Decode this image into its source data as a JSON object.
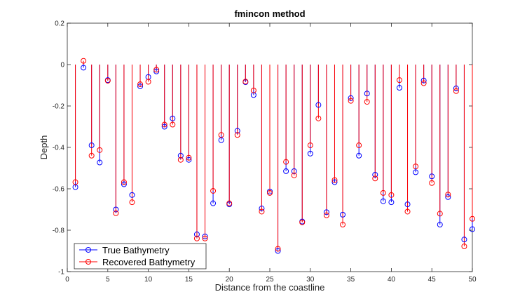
{
  "chart_data": {
    "type": "stem",
    "title": "fmincon method",
    "xlabel": "Distance from the coastline",
    "ylabel": "Depth",
    "xlim": [
      0,
      50
    ],
    "ylim": [
      -1,
      0.2
    ],
    "xticks": [
      0,
      5,
      10,
      15,
      20,
      25,
      30,
      35,
      40,
      45,
      50
    ],
    "yticks": [
      -1,
      -0.8,
      -0.6,
      -0.4,
      -0.2,
      0,
      0.2
    ],
    "ytick_labels": [
      "-1",
      "-0.8",
      "-0.6",
      "-0.4",
      "-0.2",
      "0",
      "0.2"
    ],
    "grid": false,
    "legend_position": "bottom-left",
    "x": [
      1,
      2,
      3,
      4,
      5,
      6,
      7,
      8,
      9,
      10,
      11,
      12,
      13,
      14,
      15,
      16,
      17,
      18,
      19,
      20,
      21,
      22,
      23,
      24,
      25,
      26,
      27,
      28,
      29,
      30,
      31,
      32,
      33,
      34,
      35,
      36,
      37,
      38,
      39,
      40,
      41,
      42,
      43,
      44,
      45,
      46,
      47,
      48,
      49,
      50
    ],
    "series": [
      {
        "name": "True Bathymetry",
        "color": "#0000ff",
        "values": [
          -0.592,
          -0.015,
          -0.39,
          -0.473,
          -0.075,
          -0.7,
          -0.578,
          -0.63,
          -0.105,
          -0.06,
          -0.033,
          -0.3,
          -0.26,
          -0.44,
          -0.46,
          -0.82,
          -0.83,
          -0.67,
          -0.365,
          -0.675,
          -0.32,
          -0.085,
          -0.147,
          -0.695,
          -0.613,
          -0.9,
          -0.515,
          -0.515,
          -0.758,
          -0.43,
          -0.195,
          -0.713,
          -0.568,
          -0.725,
          -0.162,
          -0.44,
          -0.14,
          -0.532,
          -0.66,
          -0.665,
          -0.112,
          -0.675,
          -0.52,
          -0.077,
          -0.54,
          -0.773,
          -0.64,
          -0.115,
          -0.845,
          -0.795
        ]
      },
      {
        "name": "Recovered Bathymetry",
        "color": "#ff0000",
        "values": [
          -0.568,
          0.018,
          -0.44,
          -0.413,
          -0.078,
          -0.718,
          -0.568,
          -0.665,
          -0.095,
          -0.083,
          -0.025,
          -0.29,
          -0.29,
          -0.46,
          -0.45,
          -0.84,
          -0.84,
          -0.61,
          -0.34,
          -0.67,
          -0.34,
          -0.082,
          -0.125,
          -0.71,
          -0.62,
          -0.89,
          -0.47,
          -0.535,
          -0.762,
          -0.39,
          -0.26,
          -0.728,
          -0.558,
          -0.773,
          -0.175,
          -0.39,
          -0.18,
          -0.55,
          -0.62,
          -0.63,
          -0.075,
          -0.71,
          -0.492,
          -0.09,
          -0.572,
          -0.72,
          -0.628,
          -0.128,
          -0.878,
          -0.745
        ]
      }
    ]
  }
}
